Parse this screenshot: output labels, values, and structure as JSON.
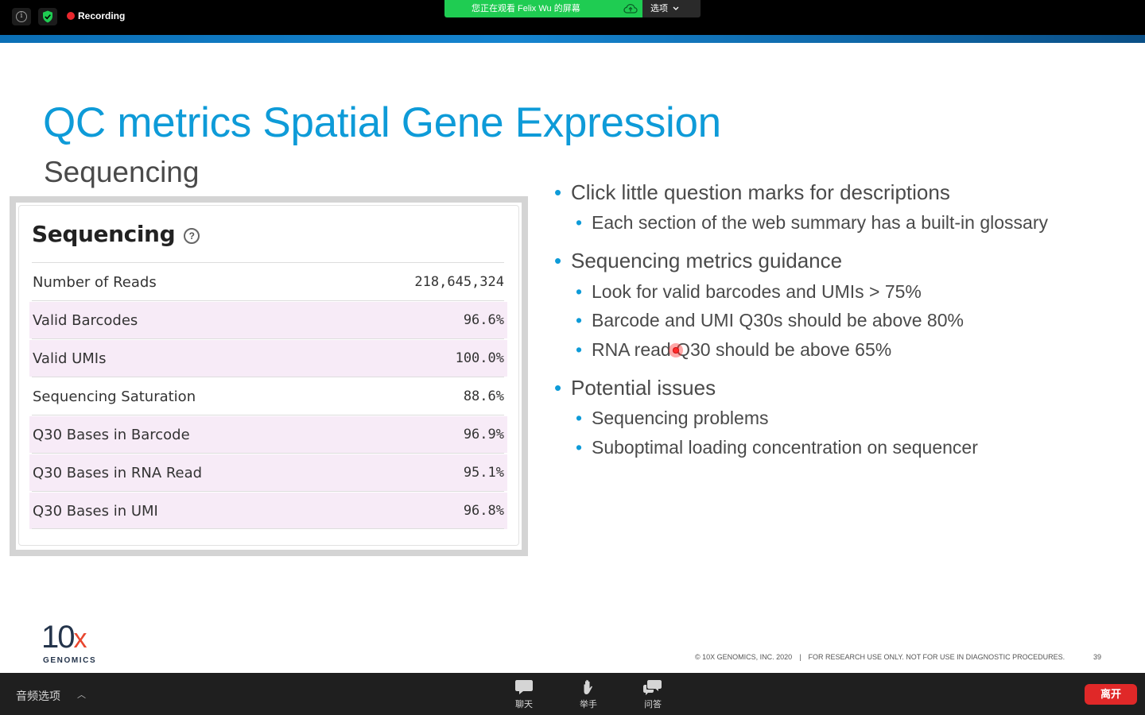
{
  "top_bar": {
    "recording_label": "Recording",
    "share_banner": "您正在观看 Felix Wu 的屏幕",
    "options_label": "选项",
    "colors": {
      "recording_dot": "#e8272d",
      "banner": "#1fcc52",
      "shield": "#1fcc52"
    }
  },
  "slide": {
    "title": "QC metrics Spatial Gene Expression",
    "subtitle": "Sequencing",
    "panel": {
      "heading": "Sequencing",
      "help_symbol": "?",
      "rows": [
        {
          "label": "Number of Reads",
          "value": "218,645,324"
        },
        {
          "label": "Valid Barcodes",
          "value": "96.6%"
        },
        {
          "label": "Valid UMIs",
          "value": "100.0%"
        },
        {
          "label": "Sequencing Saturation",
          "value": "88.6%"
        },
        {
          "label": "Q30 Bases in Barcode",
          "value": "96.9%"
        },
        {
          "label": "Q30 Bases in RNA Read",
          "value": "95.1%"
        },
        {
          "label": "Q30 Bases in UMI",
          "value": "96.8%"
        }
      ]
    },
    "bullets": [
      {
        "text": "Click little question marks for descriptions",
        "children": [
          {
            "text": "Each section of the web summary has a built-in glossary"
          }
        ]
      },
      {
        "text": "Sequencing metrics guidance",
        "children": [
          {
            "text": "Look for valid barcodes and UMIs > 75%"
          },
          {
            "text": "Barcode and UMI Q30s should be above 80%"
          },
          {
            "text": "RNA read Q30 should be above 65%"
          }
        ]
      },
      {
        "text": "Potential issues",
        "children": [
          {
            "text": "Sequencing problems"
          },
          {
            "text": "Suboptimal loading concentration on sequencer"
          }
        ]
      }
    ],
    "logo": {
      "main": "10",
      "x": "x",
      "sub": "GENOMICS"
    },
    "footer": {
      "copyright": "© 10X GENOMICS, INC. 2020",
      "separator": "|",
      "disclaimer": "FOR RESEARCH USE ONLY. NOT FOR USE IN DIAGNOSTIC PROCEDURES.",
      "page_number": "39"
    },
    "colors": {
      "title": "#0e9bd8",
      "bullet": "#0e9bd8",
      "row_highlight": "#f7ebf7",
      "logo_x": "#e8462e"
    }
  },
  "bottom_bar": {
    "audio_options": "音频选项",
    "chat_label": "聊天",
    "raise_hand_label": "举手",
    "qa_label": "问答",
    "leave_label": "离开",
    "colors": {
      "leave": "#e02828"
    }
  }
}
